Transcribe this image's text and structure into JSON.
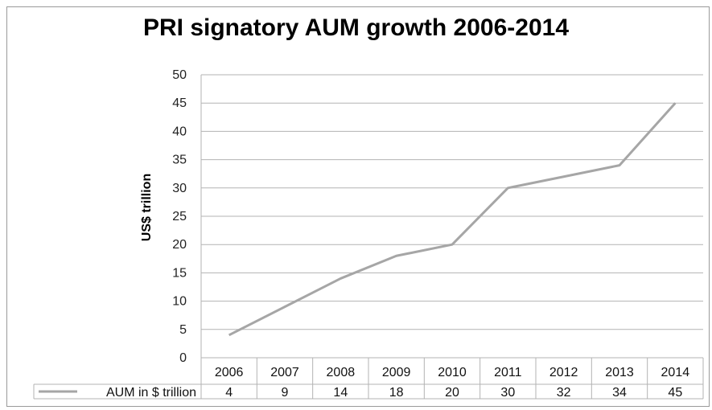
{
  "chart_data": {
    "type": "line",
    "title": "PRI signatory AUM growth 2006-2014",
    "ylabel": "US$ trillion",
    "xlabel": "",
    "ylim": [
      0,
      50
    ],
    "yticks": [
      0,
      5,
      10,
      15,
      20,
      25,
      30,
      35,
      40,
      45,
      50
    ],
    "categories": [
      "2006",
      "2007",
      "2008",
      "2009",
      "2010",
      "2011",
      "2012",
      "2013",
      "2014"
    ],
    "series": [
      {
        "name": "AUM in $ trillion",
        "values": [
          4,
          9,
          14,
          18,
          20,
          30,
          32,
          34,
          45
        ],
        "color": "#a6a6a6"
      }
    ],
    "grid": true,
    "legend": "data-table-row",
    "colors": {
      "gridline": "#b3b3b3",
      "border": "#9a9a9a"
    }
  }
}
